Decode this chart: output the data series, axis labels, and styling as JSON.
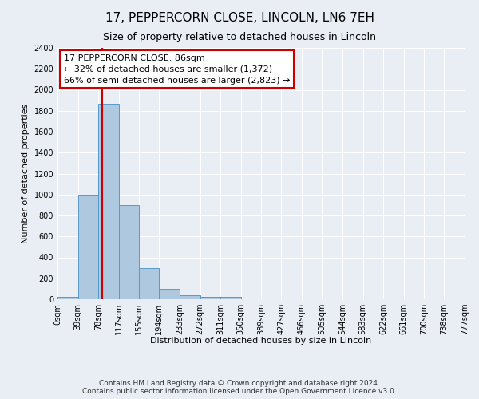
{
  "title": "17, PEPPERCORN CLOSE, LINCOLN, LN6 7EH",
  "subtitle": "Size of property relative to detached houses in Lincoln",
  "xlabel": "Distribution of detached houses by size in Lincoln",
  "ylabel": "Number of detached properties",
  "bin_edges": [
    0,
    39,
    78,
    117,
    155,
    194,
    233,
    272,
    311,
    350,
    389,
    427,
    466,
    505,
    544,
    583,
    622,
    661,
    700,
    738,
    777
  ],
  "bin_labels": [
    "0sqm",
    "39sqm",
    "78sqm",
    "117sqm",
    "155sqm",
    "194sqm",
    "233sqm",
    "272sqm",
    "311sqm",
    "350sqm",
    "389sqm",
    "427sqm",
    "466sqm",
    "505sqm",
    "544sqm",
    "583sqm",
    "622sqm",
    "661sqm",
    "700sqm",
    "738sqm",
    "777sqm"
  ],
  "bar_heights": [
    20,
    1000,
    1870,
    900,
    300,
    100,
    40,
    25,
    20,
    0,
    0,
    0,
    0,
    0,
    0,
    0,
    0,
    0,
    0,
    0
  ],
  "bar_color": "#aec8e0",
  "bar_edge_color": "#5a9ac8",
  "property_size": 86,
  "property_line_color": "#cc0000",
  "annotation_line1": "17 PEPPERCORN CLOSE: 86sqm",
  "annotation_line2": "← 32% of detached houses are smaller (1,372)",
  "annotation_line3": "66% of semi-detached houses are larger (2,823) →",
  "annotation_box_color": "#ffffff",
  "annotation_box_edge_color": "#cc0000",
  "ylim": [
    0,
    2400
  ],
  "yticks": [
    0,
    200,
    400,
    600,
    800,
    1000,
    1200,
    1400,
    1600,
    1800,
    2000,
    2200,
    2400
  ],
  "background_color": "#e8eef4",
  "grid_color": "#ffffff",
  "footer_line1": "Contains HM Land Registry data © Crown copyright and database right 2024.",
  "footer_line2": "Contains public sector information licensed under the Open Government Licence v3.0.",
  "title_fontsize": 11,
  "subtitle_fontsize": 9,
  "axis_label_fontsize": 8,
  "tick_fontsize": 7,
  "annotation_fontsize": 8,
  "footer_fontsize": 6.5
}
